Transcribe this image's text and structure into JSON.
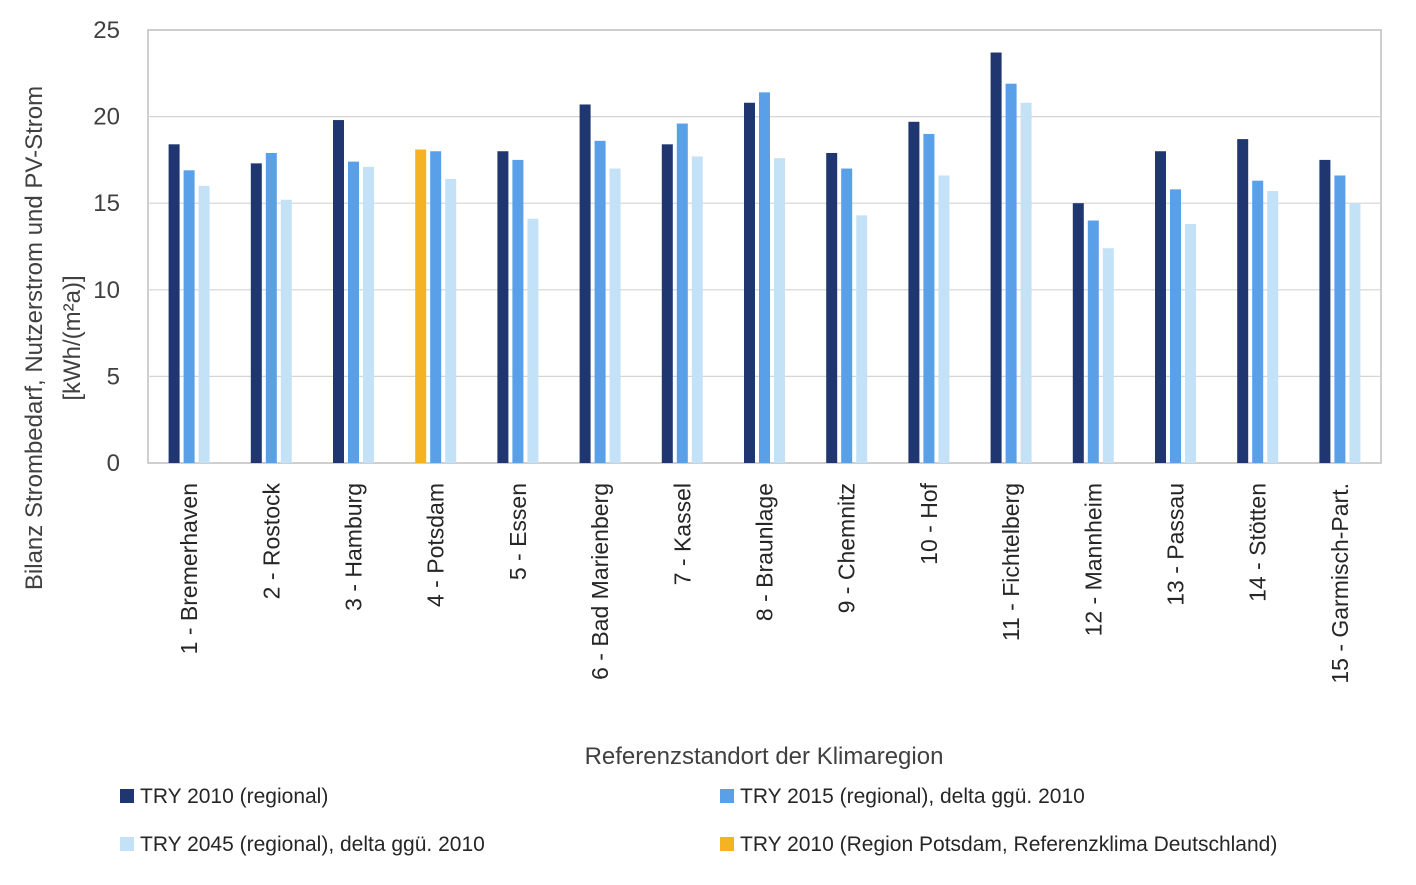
{
  "chart_data": {
    "type": "bar",
    "title": "",
    "xlabel": "Referenzstandort der Klimaregion",
    "ylabel_line1": "Bilanz Strombedarf, Nutzerstrom und PV-Strom",
    "ylabel_line2": "[kWh/(m²a)]",
    "ylim": [
      0,
      25
    ],
    "yticks": [
      0,
      5,
      10,
      15,
      20,
      25
    ],
    "grid": true,
    "legend_position": "bottom",
    "categories": [
      "1 - Bremerhaven",
      "2 - Rostock",
      "3 - Hamburg",
      "4 - Potsdam",
      "5 - Essen",
      "6 - Bad Marienberg",
      "7 - Kassel",
      "8 - Braunlage",
      "9 - Chemnitz",
      "10 - Hof",
      "11 - Fichtelberg",
      "12 - Mannheim",
      "13 - Passau",
      "14 - Stötten",
      "15 - Garmisch-Part."
    ],
    "series": [
      {
        "name": "TRY 2010 (regional)",
        "color": "#1f3670",
        "values": [
          18.4,
          17.3,
          19.8,
          18.1,
          18.0,
          20.7,
          18.4,
          20.8,
          17.9,
          19.7,
          23.7,
          15.0,
          18.0,
          18.7,
          17.5
        ],
        "highlight_index": 3,
        "highlight_color": "#f5b323"
      },
      {
        "name": "TRY 2015 (regional), delta ggü. 2010",
        "color": "#5aa0e8",
        "values": [
          16.9,
          17.9,
          17.4,
          18.0,
          17.5,
          18.6,
          19.6,
          21.4,
          17.0,
          19.0,
          21.9,
          14.0,
          15.8,
          16.3,
          16.6
        ]
      },
      {
        "name": "TRY 2045 (regional), delta ggü. 2010",
        "color": "#c4e2f7",
        "values": [
          16.0,
          15.2,
          17.1,
          16.4,
          14.1,
          17.0,
          17.7,
          17.6,
          14.3,
          16.6,
          20.8,
          12.4,
          13.8,
          15.7,
          15.0
        ]
      }
    ],
    "legend": [
      {
        "label": "TRY 2010 (regional)",
        "color": "#1f3670"
      },
      {
        "label": "TRY 2015 (regional), delta ggü. 2010",
        "color": "#5aa0e8"
      },
      {
        "label": "TRY 2045 (regional), delta ggü. 2010",
        "color": "#c4e2f7"
      },
      {
        "label": "TRY 2010 (Region Potsdam, Referenzklima Deutschland)",
        "color": "#f5b323"
      }
    ]
  }
}
